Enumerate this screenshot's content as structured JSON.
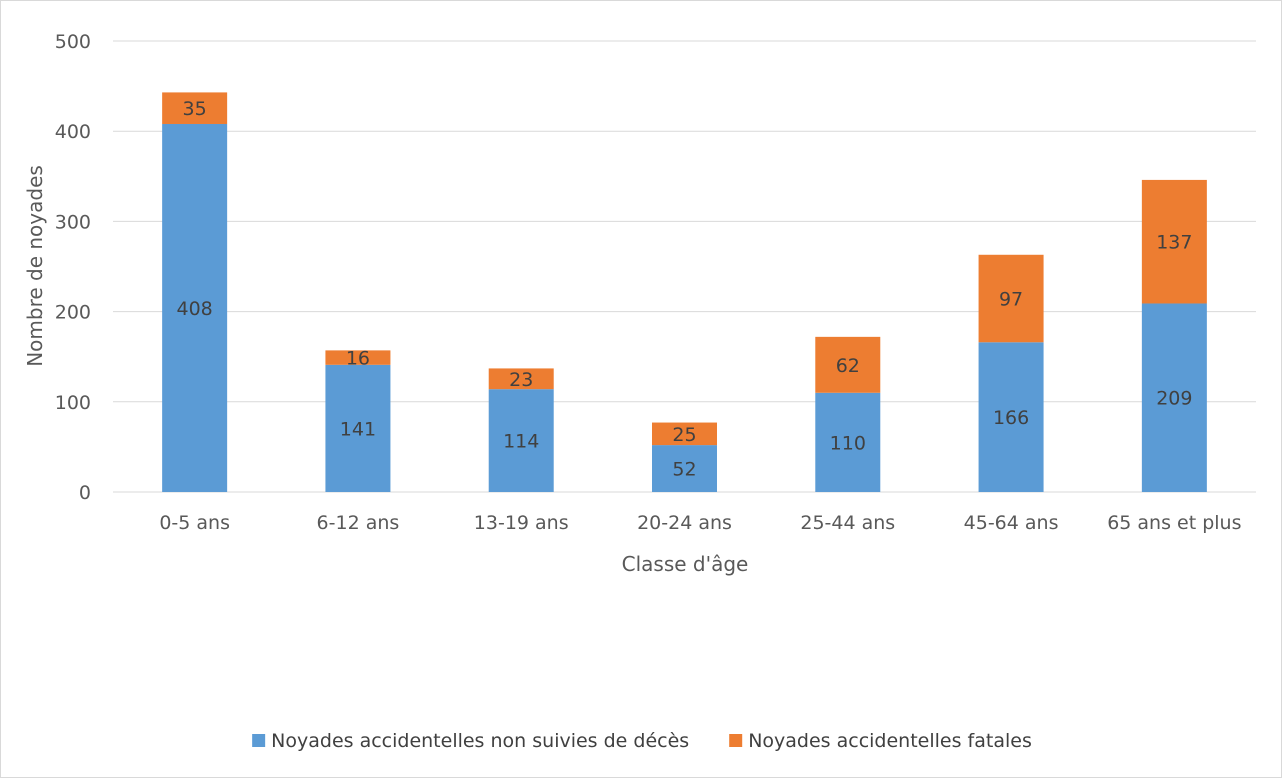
{
  "chart_data": {
    "type": "bar",
    "stacked": true,
    "categories": [
      "0-5 ans",
      "6-12 ans",
      "13-19 ans",
      "20-24 ans",
      "25-44 ans",
      "45-64 ans",
      "65 ans et plus"
    ],
    "series": [
      {
        "name": "Noyades accidentelles non suivies de décès",
        "values": [
          408,
          141,
          114,
          52,
          110,
          166,
          209
        ],
        "color": "#5b9bd5"
      },
      {
        "name": "Noyades accidentelles fatales",
        "values": [
          35,
          16,
          23,
          25,
          62,
          97,
          137
        ],
        "color": "#ed7d31"
      }
    ],
    "title": "",
    "xlabel": "Classe d'âge",
    "ylabel": "Nombre de noyades",
    "ylim": [
      0,
      500
    ],
    "yticks": [
      0,
      100,
      200,
      300,
      400,
      500
    ],
    "grid": true,
    "legend_position": "bottom",
    "gridline_color": "#d9d9d9"
  }
}
